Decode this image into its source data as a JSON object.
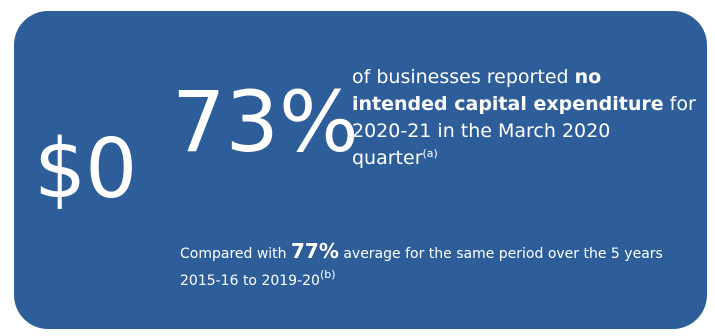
{
  "card": {
    "background_color": "#2e5e99",
    "text_color": "#ffffff",
    "value_label": "$0",
    "headline_percent": "73%",
    "description": {
      "part1": "of businesses reported ",
      "emphasis": "no intended capital expenditure",
      "part2": " for 2020-21 in the March 2020 quarter",
      "footnote": "(a)"
    },
    "comparison": {
      "part1": "Compared with ",
      "highlight": "77%",
      "part2": " average for the same period over the 5 years 2015-16 to 2019-20",
      "footnote": "(b)"
    }
  }
}
